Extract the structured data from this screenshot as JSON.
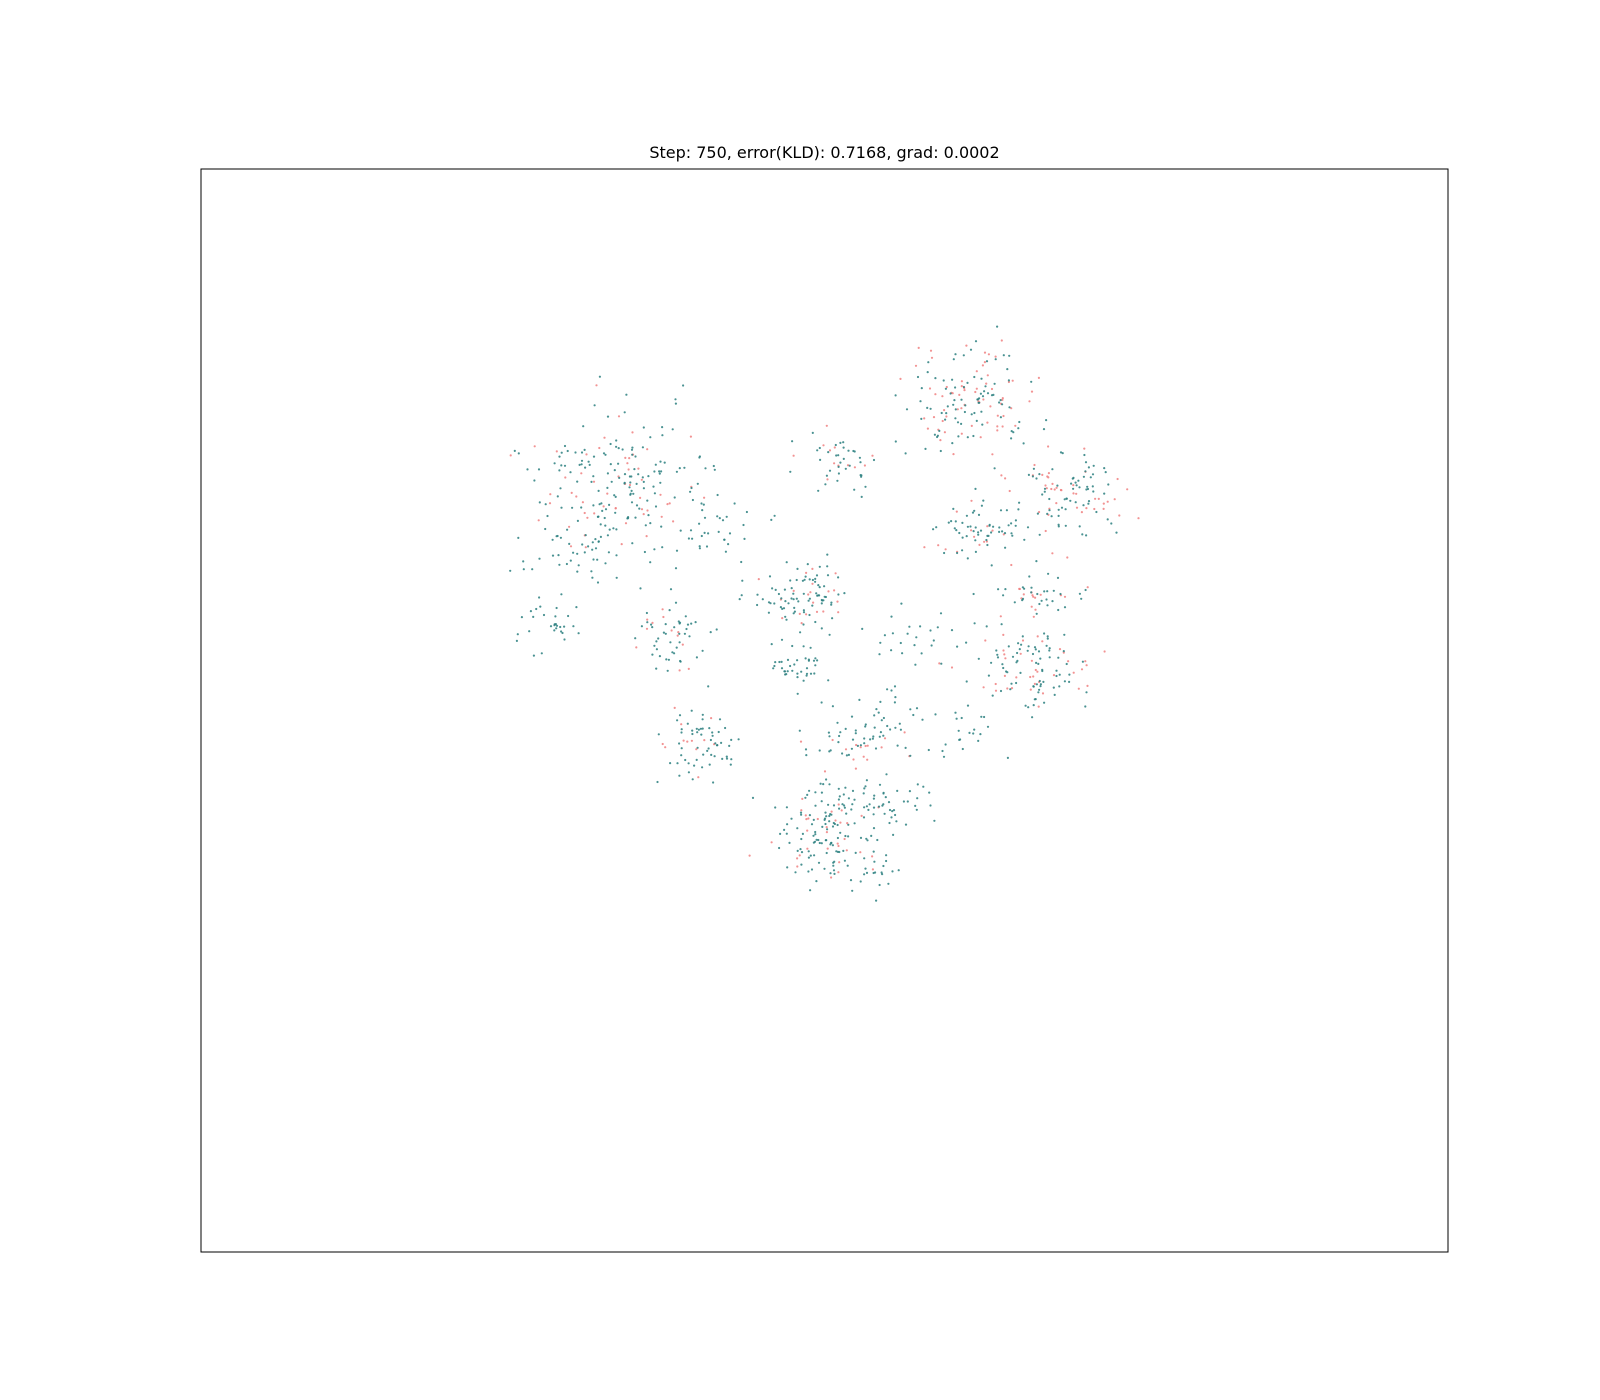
{
  "chart_data": {
    "type": "scatter",
    "title": "Step: 750, error(KLD): 0.7168, grad: 0.0002",
    "xlabel": "",
    "ylabel": "",
    "xlim": [
      -100,
      100
    ],
    "ylim": [
      -100,
      100
    ],
    "axes_ticks": "none",
    "grid": false,
    "legend": "none",
    "marker_size_note": "tiny dots",
    "colors": {
      "series_a": "#2a7f7f",
      "series_b": "#f08080",
      "frame": "#000000",
      "background": "#ffffff"
    },
    "series": [
      {
        "color_key": "series_a",
        "clusters": [
          {
            "cx": -33,
            "cy": 41,
            "sx": 7,
            "sy": 7,
            "n": 170
          },
          {
            "cx": -18,
            "cy": 33,
            "sx": 4,
            "sy": 3,
            "n": 30
          },
          {
            "cx": -43,
            "cy": 28,
            "sx": 4,
            "sy": 3,
            "n": 25
          },
          {
            "cx": -44,
            "cy": 16,
            "sx": 2.5,
            "sy": 3,
            "n": 30
          },
          {
            "cx": -25,
            "cy": 14,
            "sx": 3,
            "sy": 3.5,
            "n": 45
          },
          {
            "cx": -3,
            "cy": 21,
            "sx": 4,
            "sy": 3,
            "n": 80
          },
          {
            "cx": -6,
            "cy": 11,
            "sx": 2.5,
            "sy": 3,
            "n": 20
          },
          {
            "cx": 2,
            "cy": 46,
            "sx": 3,
            "sy": 3,
            "n": 35
          },
          {
            "cx": 23,
            "cy": 57,
            "sx": 5,
            "sy": 5,
            "n": 90
          },
          {
            "cx": 38,
            "cy": 40,
            "sx": 4.5,
            "sy": 4,
            "n": 70
          },
          {
            "cx": 24,
            "cy": 34,
            "sx": 4,
            "sy": 3,
            "n": 55
          },
          {
            "cx": 34,
            "cy": 21,
            "sx": 3.5,
            "sy": 2,
            "n": 30
          },
          {
            "cx": 16,
            "cy": 15,
            "sx": 4,
            "sy": 3,
            "n": 25
          },
          {
            "cx": 33,
            "cy": 8,
            "sx": 5,
            "sy": 4,
            "n": 80
          },
          {
            "cx": -20,
            "cy": -6,
            "sx": 3,
            "sy": 4,
            "n": 60
          },
          {
            "cx": -2,
            "cy": 7,
            "sx": 2,
            "sy": 2,
            "n": 20
          },
          {
            "cx": 4,
            "cy": -6,
            "sx": 4,
            "sy": 3,
            "n": 40
          },
          {
            "cx": 12,
            "cy": -1,
            "sx": 4,
            "sy": 3,
            "n": 25
          },
          {
            "cx": 23,
            "cy": -4,
            "sx": 3,
            "sy": 3,
            "n": 20
          },
          {
            "cx": 0,
            "cy": -22,
            "sx": 4,
            "sy": 5,
            "n": 110
          },
          {
            "cx": 11,
            "cy": -17,
            "sx": 4,
            "sy": 2.5,
            "n": 45
          },
          {
            "cx": 7,
            "cy": -30,
            "sx": 3,
            "sy": 2,
            "n": 25
          }
        ]
      },
      {
        "color_key": "series_b",
        "clusters": [
          {
            "cx": -33,
            "cy": 41,
            "sx": 7,
            "sy": 7,
            "n": 55
          },
          {
            "cx": 24,
            "cy": 58,
            "sx": 5,
            "sy": 5,
            "n": 65
          },
          {
            "cx": 38,
            "cy": 40,
            "sx": 4.5,
            "sy": 4,
            "n": 45
          },
          {
            "cx": 33,
            "cy": 8,
            "sx": 5,
            "sy": 4,
            "n": 40
          },
          {
            "cx": 34,
            "cy": 21,
            "sx": 3,
            "sy": 2,
            "n": 15
          },
          {
            "cx": -3,
            "cy": 20,
            "sx": 4,
            "sy": 3,
            "n": 20
          },
          {
            "cx": 3,
            "cy": 46,
            "sx": 3,
            "sy": 3,
            "n": 12
          },
          {
            "cx": 0,
            "cy": -22,
            "sx": 4,
            "sy": 5,
            "n": 35
          },
          {
            "cx": -20,
            "cy": -6,
            "sx": 3,
            "sy": 4,
            "n": 12
          },
          {
            "cx": -25,
            "cy": 14,
            "sx": 3,
            "sy": 3.5,
            "n": 12
          },
          {
            "cx": 5,
            "cy": -6,
            "sx": 4,
            "sy": 3,
            "n": 15
          },
          {
            "cx": 24,
            "cy": 33,
            "sx": 4,
            "sy": 3,
            "n": 15
          }
        ]
      }
    ]
  }
}
